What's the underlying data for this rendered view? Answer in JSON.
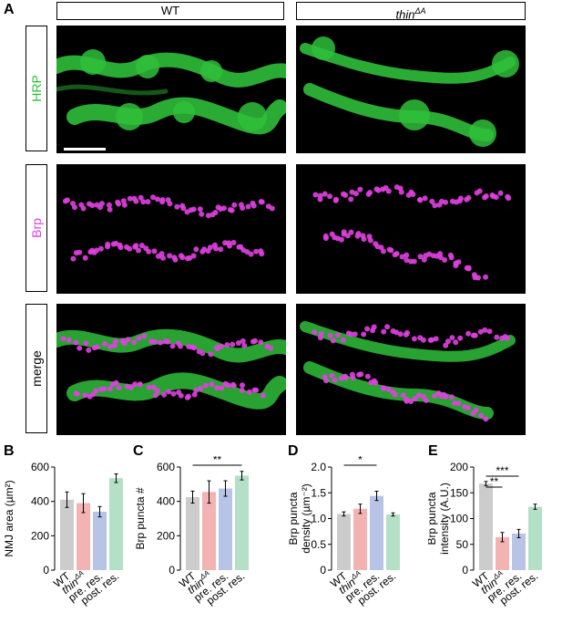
{
  "panel_letters": {
    "A": "A",
    "B": "B",
    "C": "C",
    "D": "D",
    "E": "E"
  },
  "columns": {
    "wt": "WT",
    "mutant_base": "thin",
    "mutant_sup": "ΔA"
  },
  "rows": {
    "hrp": "HRP",
    "brp": "Brp",
    "merge": "merge"
  },
  "colors": {
    "hrp": "#2fbf3a",
    "brp": "#e040e0",
    "wt": "#cccccc",
    "thin": "#f4b3b3",
    "pre": "#b7c4e6",
    "post": "#b3e0c6"
  },
  "chart_data": [
    {
      "type": "bar",
      "categories": [
        "WT",
        "thinΔA",
        "pre. res.",
        "post. res."
      ],
      "values": [
        410,
        390,
        340,
        535
      ],
      "errors": [
        45,
        55,
        30,
        25
      ],
      "ylabel": "NMJ area (µm²)",
      "ylim": [
        0,
        600
      ],
      "yticks": [
        "0",
        "200",
        "400",
        "600"
      ],
      "significance": []
    },
    {
      "type": "bar",
      "categories": [
        "WT",
        "thinΔA",
        "pre. res.",
        "post. res."
      ],
      "values": [
        425,
        455,
        475,
        550
      ],
      "errors": [
        35,
        65,
        45,
        25
      ],
      "ylabel": "Brp puncta #",
      "ylim": [
        0,
        600
      ],
      "yticks": [
        "0",
        "200",
        "400",
        "600"
      ],
      "significance": [
        {
          "from": 0,
          "to": 3,
          "label": "**"
        }
      ]
    },
    {
      "type": "bar",
      "categories": [
        "WT",
        "thinΔA",
        "pre. res.",
        "post. res."
      ],
      "values": [
        1.09,
        1.19,
        1.44,
        1.08
      ],
      "errors": [
        0.04,
        0.09,
        0.09,
        0.03
      ],
      "ylabel_lines": [
        "Brp puncta",
        "density (µm⁻²)"
      ],
      "ylim": [
        0,
        2.0
      ],
      "yticks": [
        "0",
        "0.5",
        "1.0",
        "1.5",
        "2.0"
      ],
      "significance": [
        {
          "from": 0,
          "to": 2,
          "label": "*"
        }
      ]
    },
    {
      "type": "bar",
      "categories": [
        "WT",
        "thinΔA",
        "pre. res.",
        "post. res."
      ],
      "values": [
        168,
        64,
        71,
        123
      ],
      "errors": [
        4,
        9,
        8,
        5
      ],
      "ylabel_lines": [
        "Brp puncta",
        "intensity (A.U.)"
      ],
      "ylim": [
        0,
        200
      ],
      "yticks": [
        "0",
        "50",
        "100",
        "150",
        "200"
      ],
      "significance": [
        {
          "from": 0,
          "to": 1,
          "label": "**"
        },
        {
          "from": 0,
          "to": 2,
          "label": "***"
        }
      ]
    }
  ]
}
